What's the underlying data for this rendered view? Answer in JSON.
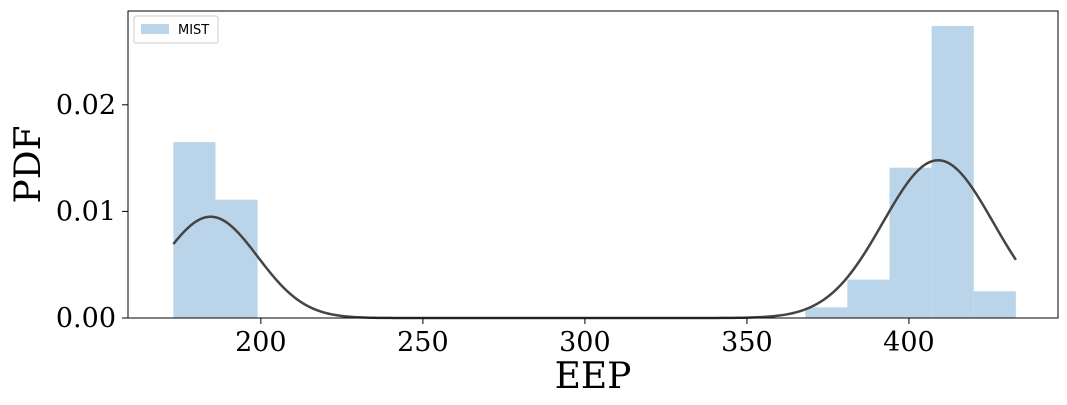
{
  "chart_data": {
    "type": "bar",
    "title": "",
    "xlabel": "EEP",
    "ylabel": "PDF",
    "xlim": [
      159,
      446
    ],
    "ylim": [
      0,
      0.0288
    ],
    "xticks": [
      200,
      250,
      300,
      350,
      400
    ],
    "yticks": [
      0.0,
      0.01,
      0.02
    ],
    "ytick_labels": [
      "0.00",
      "0.01",
      "0.02"
    ],
    "grid": false,
    "legend_position": "top-left",
    "series": [
      {
        "name": "MIST",
        "kind": "histogram",
        "color": "#bad5ea",
        "bins": [
          {
            "x0": 173,
            "x1": 186,
            "value": 0.0165
          },
          {
            "x0": 186,
            "x1": 199,
            "value": 0.0111
          },
          {
            "x0": 368,
            "x1": 381,
            "value": 0.001
          },
          {
            "x0": 381,
            "x1": 394,
            "value": 0.0036
          },
          {
            "x0": 394,
            "x1": 407,
            "value": 0.0141
          },
          {
            "x0": 407,
            "x1": 420,
            "value": 0.0274
          },
          {
            "x0": 420,
            "x1": 433,
            "value": 0.0025
          }
        ]
      },
      {
        "kind": "kde-curve",
        "color": "#444444",
        "components": [
          {
            "mean": 184.5,
            "sigma": 14.5,
            "amp": 0.0095
          },
          {
            "mean": 409.0,
            "sigma": 17.0,
            "amp": 0.0148
          }
        ],
        "x_range": [
          173,
          433
        ]
      }
    ]
  }
}
